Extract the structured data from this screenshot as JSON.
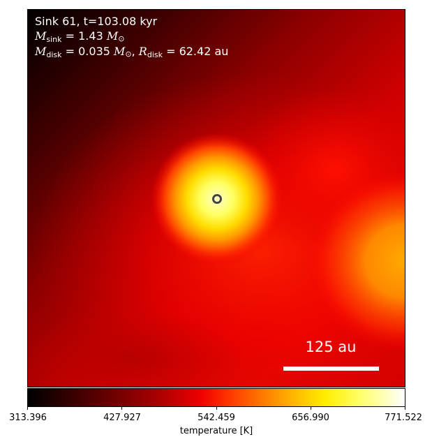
{
  "info": {
    "line1": "Sink 61, t=103.08 kyr",
    "mass_sink_value": "= 1.43",
    "mass_disk_value": "= 0.035",
    "radius_disk_value": "= 62.42 au"
  },
  "scalebar": {
    "label": "125 au"
  },
  "colorbar": {
    "title": "temperature [K]",
    "ticks": [
      "313.396",
      "427.927",
      "542.459",
      "656.990",
      "771.522"
    ],
    "min": 313.396,
    "max": 771.522,
    "colormap": "hot"
  },
  "sink_marker": {
    "color": "#444444"
  },
  "colors": {
    "dark": "#000000",
    "mid": "#d00000",
    "hot": "#ffff80"
  }
}
